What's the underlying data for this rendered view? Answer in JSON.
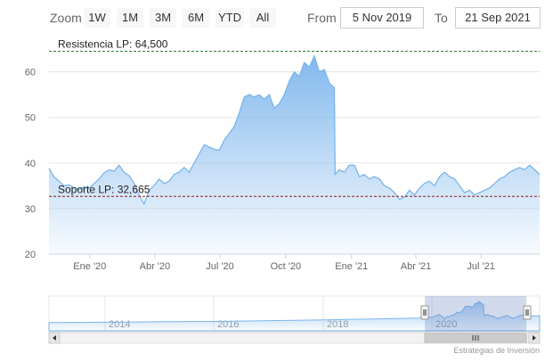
{
  "toolbar": {
    "zoom_label": "Zoom",
    "buttons": [
      "1W",
      "1M",
      "3M",
      "6M",
      "YTD",
      "All"
    ],
    "from_label": "From",
    "from_value": "5 Nov 2019",
    "to_label": "To",
    "to_value": "21 Sep 2021"
  },
  "colors": {
    "series_line": "#7cb5ec",
    "resistance_line": "#2e7d32",
    "support_line": "#8b1a1a",
    "navigator_mask": "#6685c2"
  },
  "chart_data": {
    "type": "area",
    "title": "",
    "xlabel": "",
    "ylabel": "",
    "x_range": [
      "2019-11-05",
      "2021-09-21"
    ],
    "ylim": [
      20,
      65
    ],
    "y_ticks": [
      20,
      30,
      40,
      50,
      60
    ],
    "x_ticks": [
      {
        "date": "2020-01-01",
        "label": "Ene '20"
      },
      {
        "date": "2020-04-01",
        "label": "Abr '20"
      },
      {
        "date": "2020-07-01",
        "label": "Jul '20"
      },
      {
        "date": "2020-10-01",
        "label": "Oct '20"
      },
      {
        "date": "2021-01-01",
        "label": "Ene '21"
      },
      {
        "date": "2021-04-01",
        "label": "Abr '21"
      },
      {
        "date": "2021-07-01",
        "label": "Jul '21"
      }
    ],
    "plot_lines": [
      {
        "value": 64.5,
        "label": "Resistencia LP: 64,500",
        "color": "#2e7d32",
        "style": "dashed"
      },
      {
        "value": 32.665,
        "label": "Soporte LP: 32,665",
        "color": "#8b1a1a",
        "style": "dashed"
      }
    ],
    "series": [
      {
        "x": [
          "2019-11-05",
          "2019-11-12",
          "2019-11-19",
          "2019-11-26",
          "2019-12-03",
          "2019-12-10",
          "2019-12-17",
          "2019-12-24",
          "2019-12-31",
          "2020-01-07",
          "2020-01-14",
          "2020-01-21",
          "2020-01-28",
          "2020-02-04",
          "2020-02-11",
          "2020-02-18",
          "2020-02-25",
          "2020-03-03",
          "2020-03-10",
          "2020-03-17",
          "2020-03-24",
          "2020-03-31",
          "2020-04-07",
          "2020-04-14",
          "2020-04-21",
          "2020-04-28",
          "2020-05-05",
          "2020-05-12",
          "2020-05-19",
          "2020-05-26",
          "2020-06-02",
          "2020-06-09",
          "2020-06-16",
          "2020-06-23",
          "2020-06-30",
          "2020-07-07",
          "2020-07-14",
          "2020-07-21",
          "2020-07-28",
          "2020-08-04",
          "2020-08-11",
          "2020-08-18",
          "2020-08-25",
          "2020-09-01",
          "2020-09-08",
          "2020-09-15",
          "2020-09-22",
          "2020-09-29",
          "2020-10-06",
          "2020-10-13",
          "2020-10-20",
          "2020-10-27",
          "2020-11-03",
          "2020-11-10",
          "2020-11-17",
          "2020-11-24",
          "2020-12-01",
          "2020-12-08",
          "2020-12-09",
          "2020-12-15",
          "2020-12-22",
          "2020-12-29",
          "2021-01-05",
          "2021-01-12",
          "2021-01-19",
          "2021-01-26",
          "2021-02-02",
          "2021-02-09",
          "2021-02-16",
          "2021-02-23",
          "2021-03-02",
          "2021-03-09",
          "2021-03-16",
          "2021-03-23",
          "2021-03-30",
          "2021-04-06",
          "2021-04-13",
          "2021-04-20",
          "2021-04-27",
          "2021-05-04",
          "2021-05-11",
          "2021-05-18",
          "2021-05-25",
          "2021-06-01",
          "2021-06-08",
          "2021-06-15",
          "2021-06-22",
          "2021-06-29",
          "2021-07-06",
          "2021-07-13",
          "2021-07-20",
          "2021-07-27",
          "2021-08-03",
          "2021-08-10",
          "2021-08-17",
          "2021-08-24",
          "2021-08-31",
          "2021-09-07",
          "2021-09-14",
          "2021-09-21"
        ],
        "values": [
          38.8,
          37.0,
          36.0,
          35.0,
          35.2,
          34.6,
          34.2,
          34.8,
          34.5,
          35.5,
          36.5,
          37.8,
          38.5,
          38.2,
          39.5,
          38.0,
          37.2,
          35.5,
          33.0,
          31.0,
          34.0,
          35.0,
          36.5,
          35.5,
          36.0,
          37.5,
          38.0,
          39.0,
          38.0,
          40.0,
          42.0,
          44.0,
          43.5,
          43.0,
          42.8,
          45.0,
          46.5,
          48.0,
          51.0,
          54.5,
          55.0,
          54.5,
          55.0,
          54.0,
          55.0,
          52.0,
          53.0,
          55.0,
          58.0,
          60.0,
          59.0,
          62.0,
          61.0,
          63.5,
          60.0,
          60.5,
          57.5,
          56.5,
          37.5,
          38.5,
          38.0,
          39.5,
          39.5,
          37.0,
          37.5,
          36.5,
          37.0,
          36.5,
          35.0,
          34.5,
          33.5,
          32.0,
          32.5,
          34.0,
          33.0,
          34.5,
          35.5,
          36.0,
          35.0,
          37.0,
          38.0,
          37.0,
          36.5,
          35.0,
          33.5,
          34.0,
          33.0,
          33.5,
          34.0,
          34.5,
          35.5,
          36.5,
          37.0,
          38.0,
          38.5,
          39.0,
          38.5,
          39.5,
          38.5,
          37.5
        ]
      }
    ],
    "navigator": {
      "x_ticks": [
        "2014",
        "2016",
        "2018",
        "2020"
      ],
      "selected_range": [
        "2019-11-05",
        "2021-09-21"
      ]
    }
  },
  "credit": "Estrategias de Inversión"
}
